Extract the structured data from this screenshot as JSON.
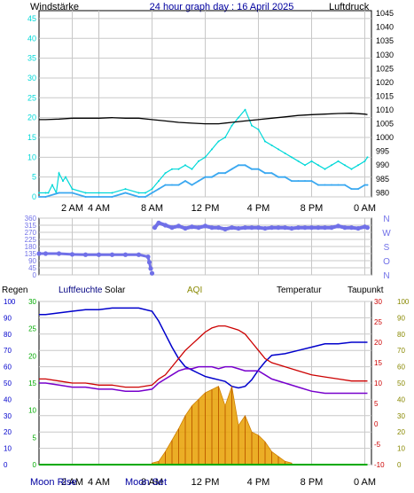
{
  "header": {
    "left_label": "Windstärke",
    "center_label": "24 hour graph day : 16 April 2025",
    "right_label": "Luftdruck"
  },
  "colors": {
    "wind_gust": "#00d8d8",
    "wind_avg": "#3aa8f0",
    "pressure": "#000000",
    "direction": "#7070e8",
    "humidity": "#0000cc",
    "solar": "#e8a000",
    "temperature": "#cc0000",
    "dewpoint": "#7700cc",
    "rain": "#00aa00",
    "grid": "#c8c8c8"
  },
  "x_ticks": [
    {
      "label": "2 AM",
      "h": 2
    },
    {
      "label": "4 AM",
      "h": 4
    },
    {
      "label": "8 AM",
      "h": 8
    },
    {
      "label": "12 PM",
      "h": 12
    },
    {
      "label": "4 PM",
      "h": 16
    },
    {
      "label": "8 PM",
      "h": 20
    },
    {
      "label": "0 AM",
      "h": 24
    }
  ],
  "bottom_x_ticks": [
    {
      "label": "2 AM",
      "h": 2
    },
    {
      "label": "4 AM",
      "h": 4
    },
    {
      "label": "8 AM",
      "h": 8
    },
    {
      "label": "12 PM",
      "h": 12
    },
    {
      "label": "4 PM",
      "h": 16
    },
    {
      "label": "8 PM",
      "h": 20
    },
    {
      "label": "0 AM",
      "h": 24
    }
  ],
  "moon_labels": {
    "rise": "Moon Rise",
    "set": "Moon Set"
  },
  "legend": {
    "rain": "Regen",
    "humidity": "Luftfeuchte",
    "solar": "Solar",
    "aqi": "AQI",
    "temperature": "Temperatur",
    "dewpoint": "Taupunkt"
  },
  "chart_data": [
    {
      "type": "line",
      "x_unit": "hour",
      "y_left": {
        "ticks": [
          0,
          5,
          10,
          15,
          20,
          25,
          30,
          35,
          40,
          45
        ],
        "ylim": [
          0,
          47
        ]
      },
      "y_right": {
        "ticks": [
          980,
          985,
          990,
          995,
          1000,
          1005,
          1010,
          1015,
          1020,
          1025,
          1030,
          1035,
          1040,
          1045
        ],
        "ylim": [
          978.5,
          1046
        ]
      },
      "series": [
        {
          "key": "gust",
          "axis": "left",
          "x": [
            -0.5,
            0,
            0.2,
            0.5,
            0.8,
            1,
            1.3,
            1.5,
            2,
            3,
            4,
            5,
            6,
            7,
            7.5,
            8,
            8.5,
            9,
            9.5,
            10,
            10.5,
            11,
            11.5,
            12,
            12.5,
            13,
            13.5,
            14,
            14.5,
            15,
            15.5,
            16,
            16.5,
            17,
            17.5,
            18,
            18.5,
            19,
            19.5,
            20,
            20.5,
            21,
            21.5,
            22,
            22.5,
            23,
            23.5,
            24,
            24.2
          ],
          "y": [
            1,
            1,
            1,
            3,
            1,
            6,
            4,
            5,
            2,
            1,
            1,
            1,
            2,
            1,
            1,
            2,
            4,
            6,
            7,
            7,
            8,
            7,
            9,
            10,
            12,
            14,
            15,
            18,
            20,
            22,
            18,
            17,
            14,
            13,
            12,
            11,
            10,
            9,
            8,
            9,
            8,
            7,
            8,
            9,
            8,
            7,
            8,
            9,
            10
          ]
        },
        {
          "key": "avg",
          "axis": "left",
          "x": [
            -0.5,
            0,
            1,
            2,
            3,
            4,
            5,
            6,
            7,
            7.5,
            8,
            8.5,
            9,
            9.5,
            10,
            10.5,
            11,
            11.5,
            12,
            12.5,
            13,
            13.5,
            14,
            14.5,
            15,
            15.5,
            16,
            16.5,
            17,
            17.5,
            18,
            18.5,
            19,
            19.5,
            20,
            20.5,
            21,
            21.5,
            22,
            22.5,
            23,
            23.5,
            24,
            24.2
          ],
          "y": [
            0,
            0,
            1,
            1,
            0,
            0,
            0,
            1,
            0,
            0,
            1,
            2,
            3,
            3,
            3,
            4,
            3,
            4,
            5,
            5,
            6,
            6,
            7,
            8,
            8,
            7,
            7,
            6,
            6,
            5,
            5,
            4,
            4,
            4,
            4,
            3,
            3,
            3,
            3,
            3,
            2,
            2,
            3,
            3
          ]
        },
        {
          "key": "pressure",
          "axis": "right",
          "x": [
            -0.5,
            0,
            1,
            2,
            3,
            4,
            5,
            6,
            7,
            8,
            9,
            10,
            11,
            12,
            13,
            14,
            15,
            16,
            17,
            18,
            19,
            20,
            21,
            22,
            23,
            24,
            24.2
          ],
          "y": [
            1006.5,
            1006.5,
            1006.7,
            1007,
            1007,
            1007,
            1007.2,
            1007,
            1007,
            1006.5,
            1006,
            1005.5,
            1005.2,
            1005,
            1005,
            1005.5,
            1006,
            1006.5,
            1007,
            1007.5,
            1008,
            1008.3,
            1008.5,
            1008.7,
            1008.8,
            1008.5,
            1008.3
          ]
        }
      ]
    },
    {
      "type": "scatter",
      "x_unit": "hour",
      "y_left": {
        "ticks": [
          0,
          45,
          90,
          135,
          180,
          225,
          270,
          315,
          360
        ],
        "ylim": [
          0,
          360
        ]
      },
      "y_right_labels": [
        "N",
        "W",
        "S",
        "O",
        "N"
      ],
      "series": [
        {
          "key": "direction",
          "x": [
            -0.5,
            0,
            1,
            2,
            3,
            4,
            5,
            6,
            7,
            7.7,
            7.8,
            7.9,
            8,
            8.2,
            8.5,
            9,
            9.5,
            10,
            10.5,
            11,
            11.5,
            12,
            12.5,
            13,
            13.5,
            14,
            14.5,
            15,
            15.5,
            16,
            16.5,
            17,
            17.5,
            18,
            18.5,
            19,
            19.5,
            20,
            20.5,
            21,
            21.5,
            22,
            22.5,
            23,
            23.5,
            24,
            24.2
          ],
          "y": [
            135,
            135,
            135,
            130,
            128,
            128,
            128,
            128,
            128,
            115,
            80,
            40,
            10,
            300,
            330,
            315,
            300,
            310,
            295,
            305,
            300,
            310,
            300,
            300,
            290,
            300,
            295,
            300,
            300,
            300,
            295,
            300,
            300,
            300,
            295,
            300,
            300,
            300,
            300,
            300,
            300,
            310,
            300,
            300,
            295,
            305,
            300
          ]
        }
      ]
    },
    {
      "type": "line",
      "x_unit": "hour",
      "y_left": {
        "ticks": [
          0,
          10,
          20,
          30,
          40,
          50,
          60,
          70,
          80,
          90,
          100
        ],
        "ylim": [
          0,
          100
        ]
      },
      "y_rain": {
        "ticks": [
          0,
          5,
          10,
          15,
          20,
          25,
          30
        ],
        "ylim": [
          0,
          30
        ]
      },
      "y_temp": {
        "ticks": [
          -10,
          -5,
          0,
          5,
          10,
          15,
          20,
          25,
          30
        ],
        "ylim": [
          -10,
          30
        ]
      },
      "y_solar": {
        "ticks": [
          0,
          10,
          20,
          30,
          40,
          50,
          60,
          70,
          80,
          90,
          100
        ],
        "ylim": [
          0,
          100
        ]
      },
      "series": [
        {
          "key": "humidity",
          "x": [
            -0.5,
            0,
            1,
            2,
            3,
            4,
            5,
            6,
            7,
            8,
            8.5,
            9,
            9.5,
            10,
            10.5,
            11,
            11.5,
            12,
            12.5,
            13,
            13.5,
            14,
            14.5,
            15,
            15.5,
            16,
            16.5,
            17,
            18,
            19,
            20,
            21,
            22,
            23,
            24,
            24.2
          ],
          "y": [
            92,
            92,
            93,
            94,
            95,
            95,
            96,
            96,
            96,
            94,
            88,
            80,
            72,
            65,
            60,
            58,
            56,
            54,
            53,
            52,
            51,
            48,
            47,
            48,
            52,
            58,
            63,
            67,
            68,
            70,
            72,
            74,
            74,
            75,
            75,
            75
          ]
        },
        {
          "key": "temperature",
          "x": [
            -0.5,
            0,
            1,
            2,
            3,
            4,
            5,
            6,
            7,
            8,
            8.5,
            9,
            9.5,
            10,
            10.5,
            11,
            11.5,
            12,
            12.5,
            13,
            13.5,
            14,
            14.5,
            15,
            15.5,
            16,
            16.5,
            17,
            18,
            19,
            20,
            21,
            22,
            23,
            24,
            24.2
          ],
          "y": [
            11,
            11,
            10.5,
            10,
            10,
            9.5,
            9.5,
            9,
            9,
            9.5,
            11,
            12,
            14,
            16,
            18,
            19.5,
            21,
            22.5,
            23.5,
            24,
            24,
            23.5,
            23,
            22,
            20,
            18,
            16,
            15,
            14,
            13,
            12,
            11.5,
            11,
            10.5,
            10.5,
            10.5
          ]
        },
        {
          "key": "dewpoint",
          "x": [
            -0.5,
            0,
            1,
            2,
            3,
            4,
            5,
            6,
            7,
            8,
            8.5,
            9,
            9.5,
            10,
            10.5,
            11,
            11.5,
            12,
            12.5,
            13,
            13.5,
            14,
            14.5,
            15,
            15.5,
            16,
            16.5,
            17,
            18,
            19,
            20,
            21,
            22,
            23,
            24,
            24.2
          ],
          "y": [
            10,
            10,
            9.5,
            9,
            9,
            8.5,
            8.5,
            8,
            8,
            8.5,
            10,
            11,
            12,
            13,
            13.5,
            13.5,
            14,
            14,
            14,
            13.5,
            14,
            14,
            13.5,
            13,
            13,
            13,
            12,
            11,
            10,
            9,
            8,
            7.5,
            7.5,
            7.5,
            7.5,
            7.5
          ]
        },
        {
          "key": "solar",
          "x": [
            8,
            8.5,
            9,
            9.5,
            10,
            10.5,
            11,
            11.5,
            12,
            12.5,
            13,
            13.5,
            14,
            14.5,
            15,
            15.5,
            16,
            16.5,
            17,
            17.5,
            18,
            18.5
          ],
          "y": [
            1,
            2,
            8,
            15,
            22,
            30,
            36,
            40,
            44,
            46,
            48,
            36,
            48,
            24,
            30,
            20,
            18,
            14,
            8,
            5,
            2,
            1
          ]
        },
        {
          "key": "rain",
          "x": [
            -0.5,
            24.2
          ],
          "y": [
            0,
            0
          ]
        }
      ]
    }
  ]
}
